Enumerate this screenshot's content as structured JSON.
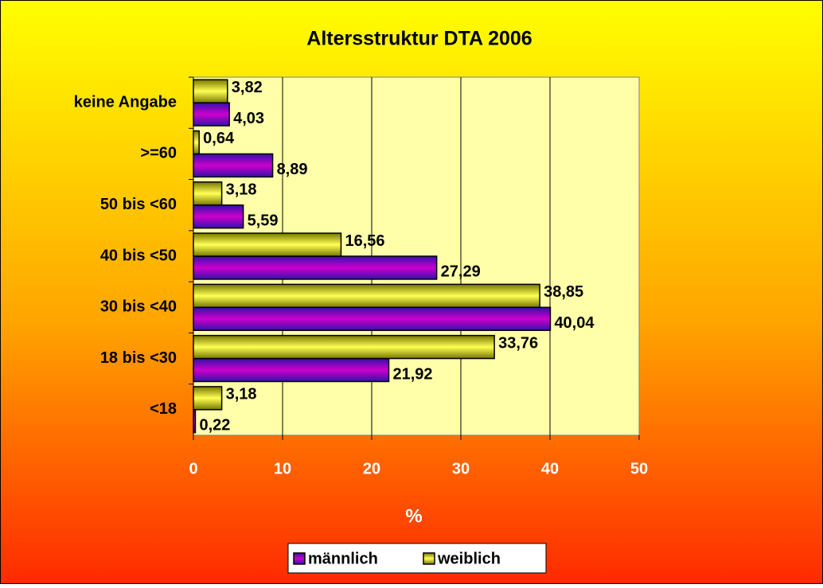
{
  "chart_data": {
    "type": "hbar",
    "title": "Altersstruktur DTA 2006",
    "categories": [
      "<18",
      "18 bis <30",
      "30 bis <40",
      "40 bis <50",
      "50 bis <60",
      ">=60",
      "keine Angabe"
    ],
    "series": [
      {
        "name": "männlich",
        "color": "#cc00cc",
        "values": [
          0.22,
          21.92,
          40.04,
          27.29,
          5.59,
          8.89,
          4.03
        ],
        "value_labels": [
          "0,22",
          "21,92",
          "40,04",
          "27,29",
          "5,59",
          "8,89",
          "4,03"
        ]
      },
      {
        "name": "weiblich",
        "color": "#ffff55",
        "values": [
          3.18,
          33.76,
          38.85,
          16.56,
          3.18,
          0.64,
          3.82
        ],
        "value_labels": [
          "3,18",
          "33,76",
          "38,85",
          "16,56",
          "3,18",
          "0,64",
          "3,82"
        ]
      }
    ],
    "xlabel": "%",
    "xlim": [
      0,
      50
    ],
    "xticks": [
      0,
      10,
      20,
      30,
      40,
      50
    ],
    "grid": true
  }
}
